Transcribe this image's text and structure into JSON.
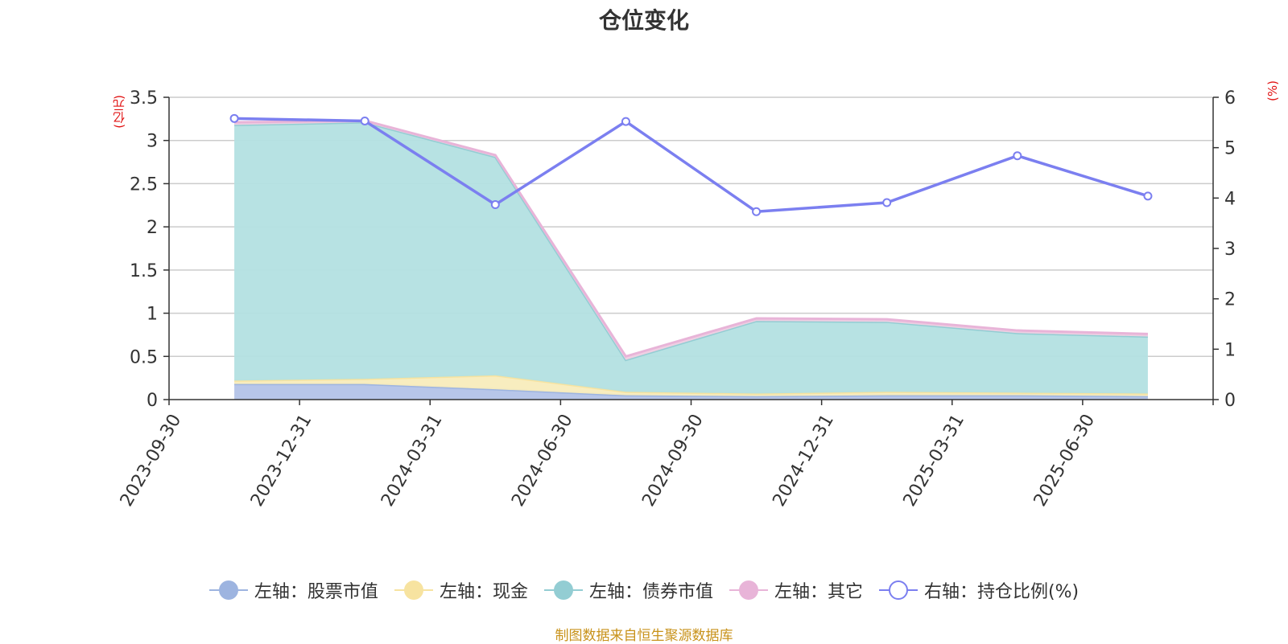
{
  "chart_data": {
    "type": "area",
    "title": "仓位变化",
    "left_axis_unit": "(亿元)",
    "right_axis_unit": "(%)",
    "categories": [
      "2023-09-30",
      "2023-12-31",
      "2024-03-31",
      "2024-06-30",
      "2024-09-30",
      "2024-12-31",
      "2025-03-31",
      "2025-06-30"
    ],
    "left_axis": {
      "ylim": [
        0,
        3.5
      ],
      "ticks": [
        "0",
        "0.5",
        "1",
        "1.5",
        "2",
        "2.5",
        "3",
        "3.5"
      ]
    },
    "right_axis": {
      "ylim": [
        0,
        6
      ],
      "ticks": [
        "0",
        "1",
        "2",
        "3",
        "4",
        "5",
        "6"
      ]
    },
    "stacked": true,
    "grid": true,
    "legend_position": "bottom",
    "series": [
      {
        "name": "左轴：股票市值",
        "axis": "left",
        "color": "#9db4e0",
        "fill": "#b3c3e8",
        "values": [
          0.18,
          0.18,
          0.12,
          0.05,
          0.04,
          0.05,
          0.05,
          0.04
        ]
      },
      {
        "name": "左轴：现金",
        "axis": "left",
        "color": "#f7e3a0",
        "fill": "#f8ecbc",
        "values": [
          0.04,
          0.06,
          0.16,
          0.04,
          0.03,
          0.04,
          0.03,
          0.03
        ]
      },
      {
        "name": "左轴：债券市值",
        "axis": "left",
        "color": "#93cdd3",
        "fill": "#b3e0e1",
        "values": [
          2.96,
          2.97,
          2.53,
          0.37,
          0.84,
          0.81,
          0.69,
          0.66
        ]
      },
      {
        "name": "左轴：其它",
        "axis": "left",
        "color": "#e8b4d8",
        "fill": "#f0cfe3",
        "values": [
          0.03,
          0.02,
          0.02,
          0.04,
          0.03,
          0.03,
          0.03,
          0.03
        ]
      },
      {
        "name": "右轴：持仓比例(%)",
        "axis": "right",
        "type": "line",
        "color": "#7b7ff0",
        "values": [
          5.58,
          5.53,
          3.87,
          5.52,
          3.73,
          3.91,
          4.84,
          4.04
        ]
      }
    ]
  },
  "source_note": "制图数据来自恒生聚源数据库"
}
